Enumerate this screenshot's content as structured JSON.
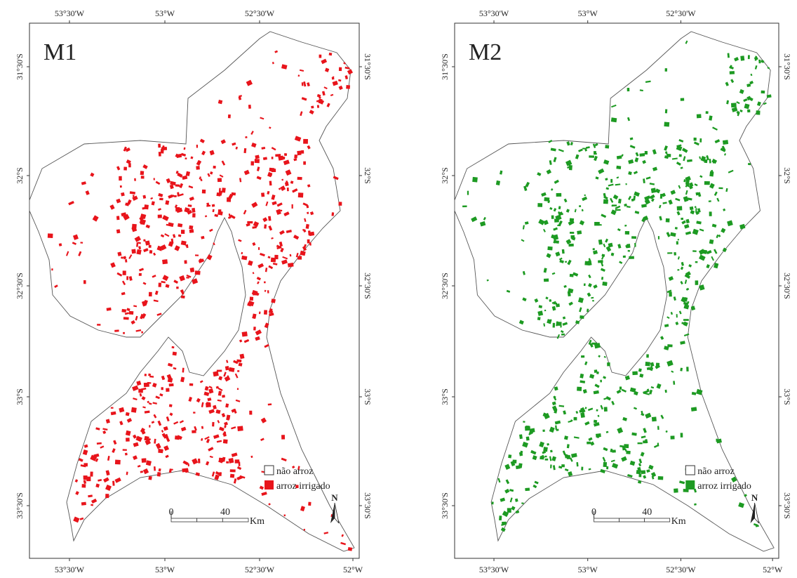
{
  "panels": [
    {
      "label": "M1",
      "color": "#e8141b",
      "top_ticks": [
        "53°30'W",
        "53°W",
        "52°30'W"
      ],
      "bottom_ticks": [
        "53°30'W",
        "53°W",
        "52°30'W",
        "52°W"
      ],
      "left_ticks": [
        "31°30'S",
        "32°S",
        "32°30'S",
        "33°S",
        "33°30'S"
      ],
      "right_ticks": [
        "31°30'S",
        "32°S",
        "32°30'S",
        "33°S",
        "33°30'S"
      ],
      "legend": [
        "não arroz",
        "arroz irrigado"
      ],
      "scale": [
        "0",
        "40",
        "Km"
      ],
      "north": "N"
    },
    {
      "label": "M2",
      "color": "#1d9a22",
      "top_ticks": [
        "53°30'W",
        "53°W",
        "52°30'W"
      ],
      "bottom_ticks": [
        "53°30'W",
        "53°W",
        "52°30'W",
        "52°W"
      ],
      "left_ticks": [
        "31°30'S",
        "32°S",
        "32°30'S",
        "33°S",
        "33°30'S"
      ],
      "right_ticks": [
        "31°30'S",
        "32°S",
        "32°30'S",
        "33°S",
        "33°30'S"
      ],
      "legend": [
        "não arroz",
        "arroz irrigado"
      ],
      "scale": [
        "0",
        "40",
        "Km"
      ],
      "north": "N"
    }
  ]
}
